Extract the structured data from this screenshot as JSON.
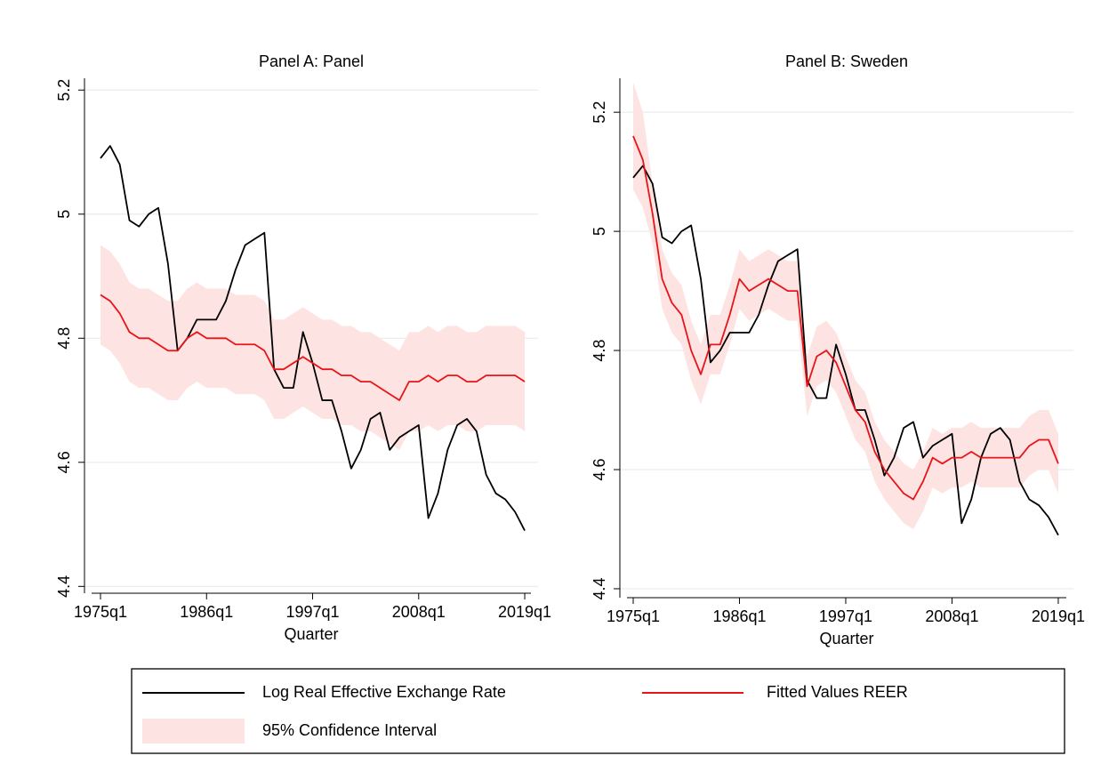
{
  "chart_data": [
    {
      "type": "line",
      "title": "Panel A: Panel",
      "xlabel": "Quarter",
      "x": [
        1975,
        1976,
        1977,
        1978,
        1979,
        1980,
        1981,
        1982,
        1983,
        1984,
        1985,
        1986,
        1987,
        1988,
        1989,
        1990,
        1991,
        1992,
        1993,
        1994,
        1995,
        1996,
        1997,
        1998,
        1999,
        2000,
        2001,
        2002,
        2003,
        2004,
        2005,
        2006,
        2007,
        2008,
        2009,
        2010,
        2011,
        2012,
        2013,
        2014,
        2015,
        2016,
        2017,
        2018,
        2019
      ],
      "xlim": [
        1973.34,
        2020.38
      ],
      "xticks": [
        {
          "value": 1975,
          "label": "1975q1"
        },
        {
          "value": 1986,
          "label": "1986q1"
        },
        {
          "value": 1997,
          "label": "1997q1"
        },
        {
          "value": 2008,
          "label": "2008q1"
        },
        {
          "value": 2019,
          "label": "2019q1"
        }
      ],
      "ylim": [
        4.389,
        5.219
      ],
      "yticks": [
        4.4,
        4.6,
        4.8,
        5,
        5.2
      ],
      "grid": true,
      "ci": {
        "name": "95% Confidence Interval",
        "color": "#fde3e1",
        "lower": [
          4.79,
          4.78,
          4.76,
          4.73,
          4.72,
          4.72,
          4.71,
          4.7,
          4.7,
          4.72,
          4.73,
          4.72,
          4.72,
          4.72,
          4.71,
          4.71,
          4.71,
          4.7,
          4.67,
          4.67,
          4.68,
          4.69,
          4.68,
          4.67,
          4.67,
          4.66,
          4.66,
          4.65,
          4.65,
          4.64,
          4.63,
          4.62,
          4.65,
          4.65,
          4.66,
          4.65,
          4.66,
          4.66,
          4.65,
          4.65,
          4.66,
          4.66,
          4.66,
          4.66,
          4.65
        ],
        "upper": [
          4.95,
          4.94,
          4.92,
          4.89,
          4.88,
          4.88,
          4.87,
          4.86,
          4.86,
          4.88,
          4.89,
          4.88,
          4.88,
          4.88,
          4.87,
          4.87,
          4.87,
          4.86,
          4.83,
          4.83,
          4.84,
          4.85,
          4.84,
          4.83,
          4.83,
          4.82,
          4.82,
          4.81,
          4.81,
          4.8,
          4.79,
          4.78,
          4.81,
          4.81,
          4.82,
          4.81,
          4.82,
          4.82,
          4.81,
          4.81,
          4.82,
          4.82,
          4.82,
          4.82,
          4.81
        ]
      },
      "series": [
        {
          "name": "Log Real Effective Exchange Rate",
          "color": "#000000",
          "values": [
            5.09,
            5.11,
            5.08,
            4.99,
            4.98,
            5.0,
            5.01,
            4.92,
            4.78,
            4.8,
            4.83,
            4.83,
            4.83,
            4.86,
            4.91,
            4.95,
            4.96,
            4.97,
            4.75,
            4.72,
            4.72,
            4.81,
            4.76,
            4.7,
            4.7,
            4.65,
            4.59,
            4.62,
            4.67,
            4.68,
            4.62,
            4.64,
            4.65,
            4.66,
            4.51,
            4.55,
            4.62,
            4.66,
            4.67,
            4.65,
            4.58,
            4.55,
            4.54,
            4.52,
            4.49
          ]
        },
        {
          "name": "Fitted Values REER",
          "color": "#e8141a",
          "values": [
            4.87,
            4.86,
            4.84,
            4.81,
            4.8,
            4.8,
            4.79,
            4.78,
            4.78,
            4.8,
            4.81,
            4.8,
            4.8,
            4.8,
            4.79,
            4.79,
            4.79,
            4.78,
            4.75,
            4.75,
            4.76,
            4.77,
            4.76,
            4.75,
            4.75,
            4.74,
            4.74,
            4.73,
            4.73,
            4.72,
            4.71,
            4.7,
            4.73,
            4.73,
            4.74,
            4.73,
            4.74,
            4.74,
            4.73,
            4.73,
            4.74,
            4.74,
            4.74,
            4.74,
            4.73
          ]
        }
      ]
    },
    {
      "type": "line",
      "title": "Panel B: Sweden",
      "xlabel": "Quarter",
      "x": [
        1975,
        1976,
        1977,
        1978,
        1979,
        1980,
        1981,
        1982,
        1983,
        1984,
        1985,
        1986,
        1987,
        1988,
        1989,
        1990,
        1991,
        1992,
        1993,
        1994,
        1995,
        1996,
        1997,
        1998,
        1999,
        2000,
        2001,
        2002,
        2003,
        2004,
        2005,
        2006,
        2007,
        2008,
        2009,
        2010,
        2011,
        2012,
        2013,
        2014,
        2015,
        2016,
        2017,
        2018,
        2019
      ],
      "xlim": [
        1973.62,
        2020.57
      ],
      "xticks": [
        {
          "value": 1975,
          "label": "1975q1"
        },
        {
          "value": 1986,
          "label": "1986q1"
        },
        {
          "value": 1997,
          "label": "1997q1"
        },
        {
          "value": 2008,
          "label": "2008q1"
        },
        {
          "value": 2019,
          "label": "2019q1"
        }
      ],
      "ylim": [
        4.385,
        5.257
      ],
      "yticks": [
        4.4,
        4.6,
        4.8,
        5,
        5.2
      ],
      "grid": true,
      "ci": {
        "color": "#fde3e1",
        "lower": [
          5.07,
          5.04,
          4.98,
          4.87,
          4.83,
          4.81,
          4.75,
          4.71,
          4.76,
          4.76,
          4.81,
          4.87,
          4.85,
          4.86,
          4.87,
          4.86,
          4.85,
          4.85,
          4.69,
          4.74,
          4.75,
          4.73,
          4.69,
          4.65,
          4.63,
          4.58,
          4.55,
          4.53,
          4.51,
          4.5,
          4.53,
          4.57,
          4.56,
          4.57,
          4.57,
          4.58,
          4.57,
          4.57,
          4.57,
          4.57,
          4.57,
          4.59,
          4.6,
          4.6,
          4.56
        ],
        "upper": [
          5.25,
          5.2,
          5.08,
          4.97,
          4.93,
          4.91,
          4.85,
          4.81,
          4.86,
          4.86,
          4.91,
          4.97,
          4.95,
          4.96,
          4.97,
          4.96,
          4.95,
          4.95,
          4.79,
          4.84,
          4.85,
          4.83,
          4.79,
          4.75,
          4.73,
          4.68,
          4.65,
          4.63,
          4.61,
          4.6,
          4.63,
          4.67,
          4.66,
          4.67,
          4.67,
          4.68,
          4.67,
          4.67,
          4.67,
          4.67,
          4.67,
          4.69,
          4.7,
          4.7,
          4.66
        ]
      },
      "series": [
        {
          "color": "#000000",
          "values": [
            5.09,
            5.11,
            5.08,
            4.99,
            4.98,
            5.0,
            5.01,
            4.92,
            4.78,
            4.8,
            4.83,
            4.83,
            4.83,
            4.86,
            4.91,
            4.95,
            4.96,
            4.97,
            4.75,
            4.72,
            4.72,
            4.81,
            4.76,
            4.7,
            4.7,
            4.65,
            4.59,
            4.62,
            4.67,
            4.68,
            4.62,
            4.64,
            4.65,
            4.66,
            4.51,
            4.55,
            4.62,
            4.66,
            4.67,
            4.65,
            4.58,
            4.55,
            4.54,
            4.52,
            4.49
          ]
        },
        {
          "color": "#e8141a",
          "values": [
            5.16,
            5.12,
            5.03,
            4.92,
            4.88,
            4.86,
            4.8,
            4.76,
            4.81,
            4.81,
            4.86,
            4.92,
            4.9,
            4.91,
            4.92,
            4.91,
            4.9,
            4.9,
            4.74,
            4.79,
            4.8,
            4.78,
            4.74,
            4.7,
            4.68,
            4.63,
            4.6,
            4.58,
            4.56,
            4.55,
            4.58,
            4.62,
            4.61,
            4.62,
            4.62,
            4.63,
            4.62,
            4.62,
            4.62,
            4.62,
            4.62,
            4.64,
            4.65,
            4.65,
            4.61
          ]
        }
      ]
    }
  ]
}
